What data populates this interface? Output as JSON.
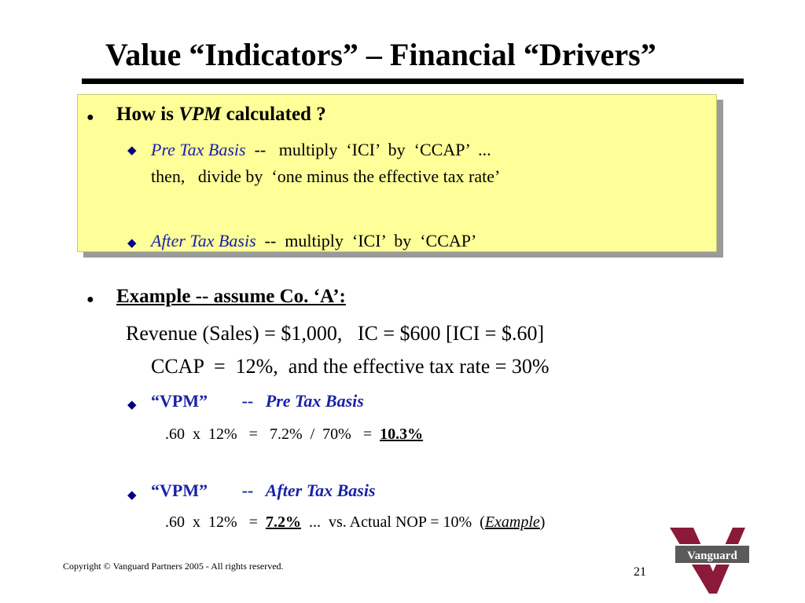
{
  "slide": {
    "title": "Value “Indicators” – Financial “Drivers”",
    "box": {
      "bullet_prefix": "How is ",
      "bullet_vpm": "VPM",
      "bullet_suffix": " calculated ?",
      "pre_label": "Pre Tax Basis",
      "pre_text": "  --   multiply  ‘ICI’  by  ‘CCAP’  ...",
      "pre_line2": "then,   divide by  ‘one minus the effective tax rate’",
      "after_label": "After Tax Basis",
      "after_text": "  --  multiply  ‘ICI’  by  ‘CCAP’"
    },
    "example": {
      "heading": "Example -- assume Co. ‘A’:",
      "line1": "Revenue (Sales) = $1,000,   IC = $600 [ICI = $.60]",
      "line2": "CCAP  =  12%,  and the effective tax rate = 30%",
      "pre": {
        "vpm": "“VPM”",
        "dash": "--",
        "label": "Pre Tax Basis",
        "calc": ".60  x  12%   =   7.2%  /  70%   =  ",
        "result": "10.3%"
      },
      "after": {
        "vpm": "“VPM”",
        "dash": "--",
        "label": "After Tax Basis",
        "calc": ".60  x  12%   =  ",
        "result": "7.2%",
        "tail_prefix": "  ...  vs. Actual NOP = 10%  (",
        "tail_example": "Example",
        "tail_suffix": ")"
      }
    },
    "footer": {
      "copyright": "Copyright © Vanguard Partners 2005 - All rights reserved.",
      "page_number": "21"
    },
    "logo": {
      "text": "Vanguard",
      "letter": "V",
      "color": "#8b1a3a"
    }
  }
}
